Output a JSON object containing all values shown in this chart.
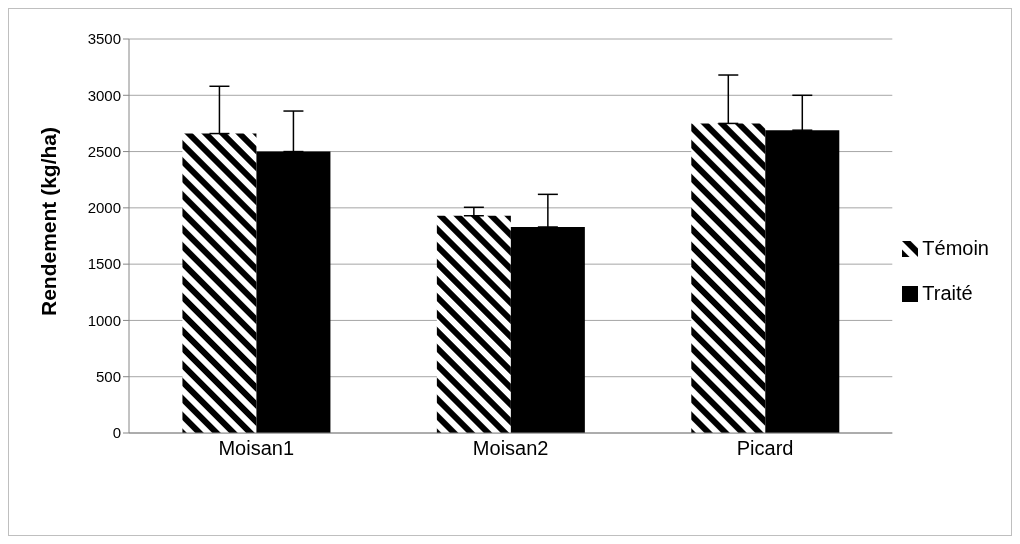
{
  "chart_data": {
    "type": "bar",
    "ylabel": "Rendement (kg/ha)",
    "categories": [
      "Moisan1",
      "Moisan2",
      "Picard"
    ],
    "series": [
      {
        "name": "Témoin",
        "color": "#000000",
        "values": [
          2660,
          1930,
          2750
        ],
        "errors": [
          [
            2660,
            3080
          ],
          [
            1930,
            2005
          ],
          [
            2750,
            3180
          ]
        ]
      },
      {
        "name": "Traité",
        "color": "#000000",
        "values": [
          2500,
          1830,
          2690
        ],
        "errors": [
          [
            2500,
            2860
          ],
          [
            1830,
            2120
          ],
          [
            2690,
            3000
          ]
        ]
      }
    ],
    "ylim": [
      0,
      3500
    ],
    "yticks": [
      0,
      500,
      1000,
      1500,
      2000,
      2500,
      3000,
      3500
    ],
    "grid": "y",
    "legend": "right"
  }
}
